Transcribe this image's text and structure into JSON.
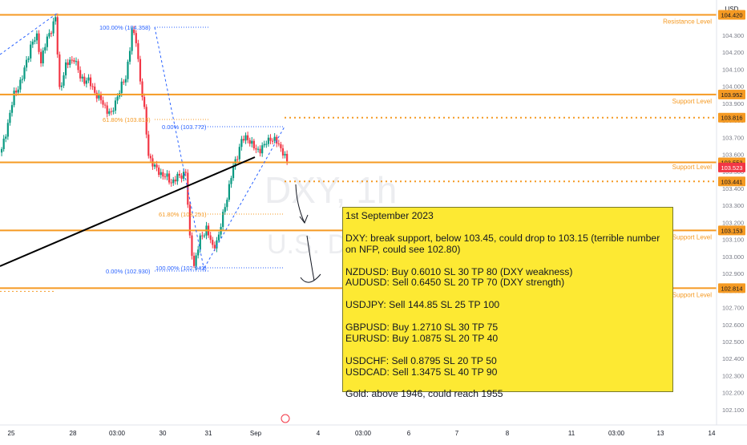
{
  "chart_data": {
    "type": "candlestick",
    "watermark": {
      "symbol": "DXY, 1h",
      "name": "U.S. Do"
    },
    "currency": "USD",
    "x_ticks": [
      "25",
      "28",
      "03:00",
      "30",
      "31",
      "Sep",
      "4",
      "03:00",
      "6",
      "7",
      "8",
      "11",
      "03:00",
      "13",
      "14"
    ],
    "y_ticks": [
      "104.420",
      "104.300",
      "104.200",
      "104.100",
      "104.000",
      "103.900",
      "103.800",
      "103.700",
      "103.600",
      "103.500",
      "103.400",
      "103.300",
      "103.200",
      "103.100",
      "103.000",
      "102.900",
      "102.800",
      "102.700",
      "102.600",
      "102.500",
      "102.400",
      "102.300",
      "102.200",
      "102.100"
    ],
    "horizontal_levels": [
      {
        "price": 104.42,
        "price_label": "104.420",
        "label": "Resistance Level",
        "style": "solid"
      },
      {
        "price": 103.952,
        "price_label": "103.952",
        "label": "Support Level",
        "style": "solid"
      },
      {
        "price": 103.816,
        "price_label": "103.816",
        "label": "",
        "style": "dotted"
      },
      {
        "price": 103.553,
        "price_label": "103.553",
        "label": "",
        "style": "solid"
      },
      {
        "price": 103.441,
        "price_label": "103.441",
        "label": "",
        "style": "dotted"
      },
      {
        "price": 103.153,
        "price_label": "103.153",
        "label": "Support Level",
        "style": "solid"
      },
      {
        "price": 102.814,
        "price_label": "102.814",
        "label": "Support Level",
        "style": "solid"
      }
    ],
    "last_price": {
      "price": 103.523,
      "price_label": "103.523",
      "label": "Support Level"
    },
    "fib_labels": [
      {
        "text": "100.00% (104.358)"
      },
      {
        "text": "61.80% (103.813)"
      },
      {
        "text": "0.00% (102.930)"
      },
      {
        "text": "0.00% (103.772)"
      },
      {
        "text": "61.80% (103.251)"
      },
      {
        "text": "100.00% (102.942)"
      }
    ],
    "colors": {
      "level": "#f59a23",
      "up": "#089981",
      "down": "#f23645",
      "trendline": "#000000",
      "fib": "#2962ff",
      "last_price": "#f23645"
    }
  },
  "note": {
    "title": "1st September 2023",
    "dxy": "DXY: break support, below 103.45, could drop to 103.15 (terrible number on NFP, could see 102.80)",
    "nzdusd": "NZDUSD: Buy 0.6010 SL 30 TP 80 (DXY weakness)",
    "audusd": "AUDUSD: Sell 0.6450 SL 20 TP 70 (DXY strength)",
    "usdjpy": "USDJPY: Sell 144.85 SL 25 TP 100",
    "gbpusd": "GBPUSD: Buy 1.2710 SL 30 TP 75",
    "eurusd": "EURUSD: Buy 1.0875 SL 20 TP 40",
    "usdchf": "USDCHF: Sell 0.8795 SL 20 TP 50",
    "usdcad": "USDCAD: Sell 1.3475 SL 40 TP 90",
    "gold": "Gold: above 1946, could reach 1955"
  }
}
